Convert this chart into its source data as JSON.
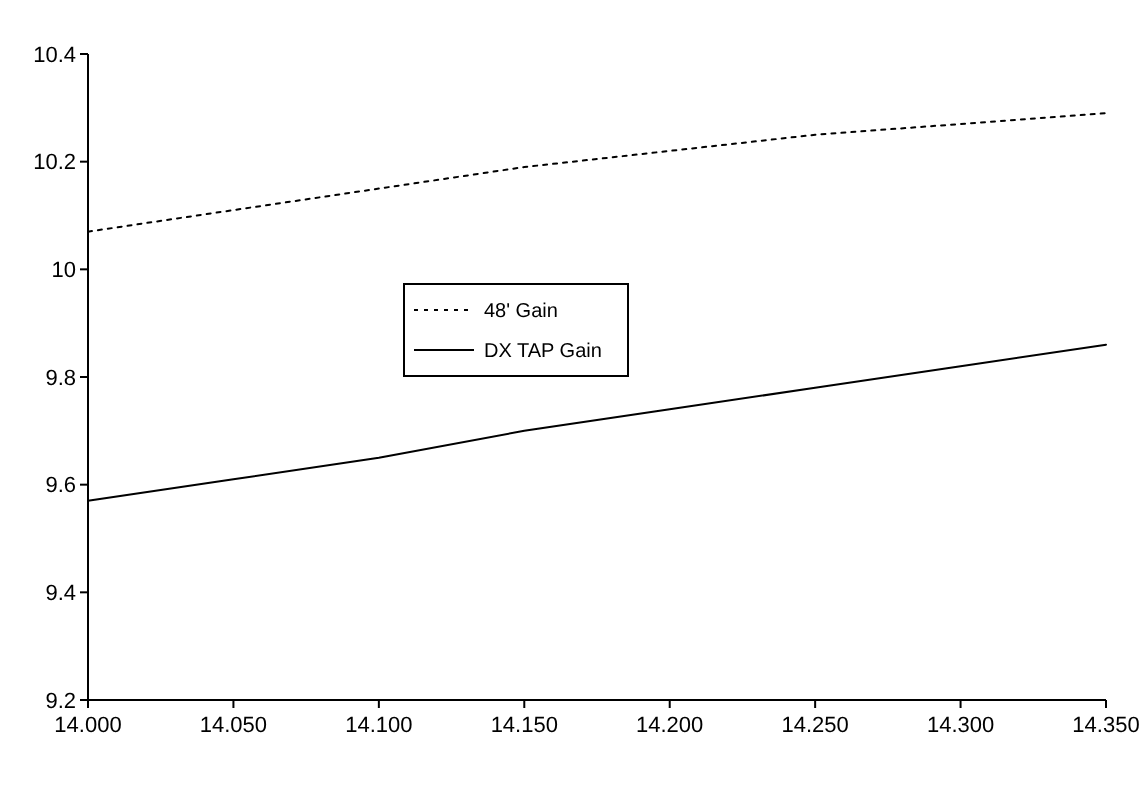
{
  "chart_data": {
    "type": "line",
    "x": [
      14.0,
      14.05,
      14.1,
      14.15,
      14.2,
      14.25,
      14.3,
      14.35
    ],
    "series": [
      {
        "name": "48' Gain",
        "color": "#000000",
        "line_style": "dotted",
        "values": [
          10.07,
          10.11,
          10.15,
          10.19,
          10.22,
          10.25,
          10.27,
          10.29
        ]
      },
      {
        "name": "DX TAP Gain",
        "color": "#000000",
        "line_style": "solid",
        "values": [
          9.57,
          9.61,
          9.65,
          9.7,
          9.74,
          9.78,
          9.82,
          9.86
        ]
      }
    ],
    "xlim": [
      14.0,
      14.35
    ],
    "xticks": [
      {
        "value": 14.0,
        "label": "14.000"
      },
      {
        "value": 14.05,
        "label": "14.050"
      },
      {
        "value": 14.1,
        "label": "14.100"
      },
      {
        "value": 14.15,
        "label": "14.150"
      },
      {
        "value": 14.2,
        "label": "14.200"
      },
      {
        "value": 14.25,
        "label": "14.250"
      },
      {
        "value": 14.3,
        "label": "14.300"
      },
      {
        "value": 14.35,
        "label": "14.350"
      }
    ],
    "ylim": [
      9.2,
      10.4
    ],
    "yticks": [
      9.2,
      9.4,
      9.6,
      9.8,
      10,
      10.2,
      10.4
    ],
    "legend": "center",
    "grid": false
  }
}
